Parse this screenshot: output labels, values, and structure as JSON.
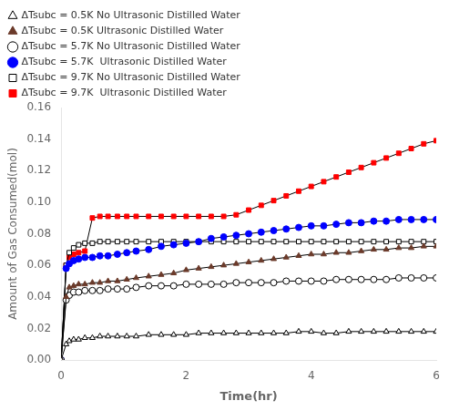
{
  "chart_data": {
    "type": "line",
    "x_label": "Time(hr)",
    "y_label": "Amount of Gas Consumed(mol)",
    "xlim": [
      0,
      6
    ],
    "ylim": [
      0,
      0.16
    ],
    "xticks": [
      0,
      2,
      4,
      6
    ],
    "yticks": [
      {
        "value": 0,
        "label": "0.00"
      },
      0.02,
      0.04,
      0.06,
      0.08,
      {
        "value": 0.1,
        "label": "0.10"
      },
      0.12,
      0.14,
      0.16
    ],
    "grid": false,
    "legend": "upper left",
    "x": [
      0.0,
      0.08,
      0.13,
      0.2,
      0.28,
      0.38,
      0.5,
      0.62,
      0.75,
      0.9,
      1.05,
      1.2,
      1.4,
      1.6,
      1.8,
      2.0,
      2.2,
      2.4,
      2.6,
      2.8,
      3.0,
      3.2,
      3.4,
      3.6,
      3.8,
      4.0,
      4.2,
      4.4,
      4.6,
      4.8,
      5.0,
      5.2,
      5.4,
      5.6,
      5.8,
      6.0
    ],
    "series": [
      {
        "name": "ΔTsubc = 0.5K No Ultrasonic Distilled Water",
        "color": "black",
        "marker": "triangle-open",
        "line_style": "solid",
        "values": [
          0.0,
          0.01,
          0.012,
          0.013,
          0.013,
          0.014,
          0.014,
          0.015,
          0.015,
          0.015,
          0.015,
          0.015,
          0.016,
          0.016,
          0.016,
          0.016,
          0.017,
          0.017,
          0.017,
          0.017,
          0.017,
          0.017,
          0.017,
          0.017,
          0.018,
          0.018,
          0.017,
          0.017,
          0.018,
          0.018,
          0.018,
          0.018,
          0.018,
          0.018,
          0.018,
          0.018
        ]
      },
      {
        "name": "ΔTsubc = 0.5K Ultrasonic Distilled Water",
        "color": "#6B3A2A",
        "marker": "triangle",
        "line_style": "solid",
        "values": [
          0.0,
          0.04,
          0.046,
          0.047,
          0.048,
          0.048,
          0.049,
          0.049,
          0.05,
          0.05,
          0.051,
          0.052,
          0.053,
          0.054,
          0.055,
          0.057,
          0.058,
          0.059,
          0.06,
          0.061,
          0.062,
          0.063,
          0.064,
          0.065,
          0.066,
          0.067,
          0.067,
          0.068,
          0.068,
          0.069,
          0.07,
          0.07,
          0.071,
          0.071,
          0.072,
          0.072
        ]
      },
      {
        "name": "ΔTsubc = 5.7K No Ultrasonic Distilled Water",
        "color": "black",
        "marker": "circle-open",
        "line_style": "solid",
        "values": [
          0.0,
          0.038,
          0.041,
          0.043,
          0.043,
          0.044,
          0.044,
          0.044,
          0.045,
          0.045,
          0.045,
          0.046,
          0.047,
          0.047,
          0.047,
          0.048,
          0.048,
          0.048,
          0.048,
          0.049,
          0.049,
          0.049,
          0.049,
          0.05,
          0.05,
          0.05,
          0.05,
          0.051,
          0.051,
          0.051,
          0.051,
          0.051,
          0.052,
          0.052,
          0.052,
          0.052
        ]
      },
      {
        "name": "ΔTsubc = 5.7K  Ultrasonic Distilled Water",
        "color": "blue",
        "marker": "circle",
        "line_style": "solid",
        "values": [
          0.0,
          0.058,
          0.061,
          0.063,
          0.064,
          0.065,
          0.065,
          0.066,
          0.066,
          0.067,
          0.068,
          0.069,
          0.07,
          0.072,
          0.073,
          0.074,
          0.075,
          0.077,
          0.078,
          0.079,
          0.08,
          0.081,
          0.082,
          0.083,
          0.084,
          0.085,
          0.085,
          0.086,
          0.087,
          0.087,
          0.088,
          0.088,
          0.089,
          0.089,
          0.089,
          0.089
        ]
      },
      {
        "name": "ΔTsubc = 9.7K No Ultrasonic Distilled Water",
        "color": "black",
        "marker": "square-open",
        "line_style": "solid",
        "values": [
          0.0,
          0.06,
          0.068,
          0.071,
          0.073,
          0.074,
          0.074,
          0.075,
          0.075,
          0.075,
          0.075,
          0.075,
          0.075,
          0.075,
          0.075,
          0.075,
          0.075,
          0.075,
          0.075,
          0.075,
          0.075,
          0.075,
          0.075,
          0.075,
          0.075,
          0.075,
          0.075,
          0.075,
          0.075,
          0.075,
          0.075,
          0.075,
          0.075,
          0.075,
          0.075,
          0.075
        ]
      },
      {
        "name": "ΔTsubc = 9.7K  Ultrasonic Distilled Water",
        "color": "red",
        "marker": "square",
        "line_style": "solid",
        "values": [
          0.0,
          0.06,
          0.065,
          0.067,
          0.068,
          0.069,
          0.09,
          0.091,
          0.091,
          0.091,
          0.091,
          0.091,
          0.091,
          0.091,
          0.091,
          0.091,
          0.091,
          0.091,
          0.091,
          0.092,
          0.095,
          0.098,
          0.101,
          0.104,
          0.107,
          0.11,
          0.113,
          0.116,
          0.119,
          0.122,
          0.125,
          0.128,
          0.131,
          0.134,
          0.137,
          0.139
        ]
      }
    ]
  }
}
